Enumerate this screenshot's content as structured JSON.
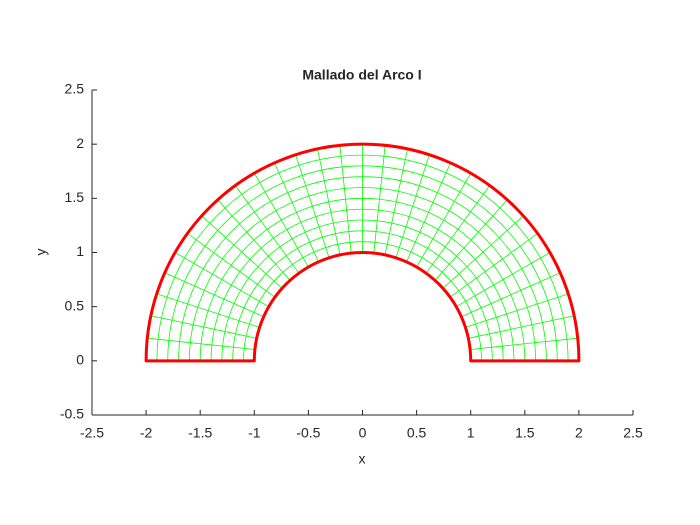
{
  "chart_data": {
    "type": "mesh",
    "title": "Mallado del Arco I",
    "x_label": "x",
    "y_label": "y",
    "xlim": [
      -2.5,
      2.5
    ],
    "xticks": [
      -2.5,
      -2,
      -1.5,
      -1,
      -0.5,
      0,
      0.5,
      1,
      1.5,
      2,
      2.5
    ],
    "ylim": [
      -0.5,
      2.5
    ],
    "yticks": [
      -0.5,
      0,
      0.5,
      1,
      1.5,
      2,
      2.5
    ],
    "mesh": {
      "r_inner": 1,
      "r_outer": 2,
      "n_radial": 10,
      "n_angular": 30,
      "color": "#00ff00"
    },
    "boundary_color": "#ff0000"
  }
}
